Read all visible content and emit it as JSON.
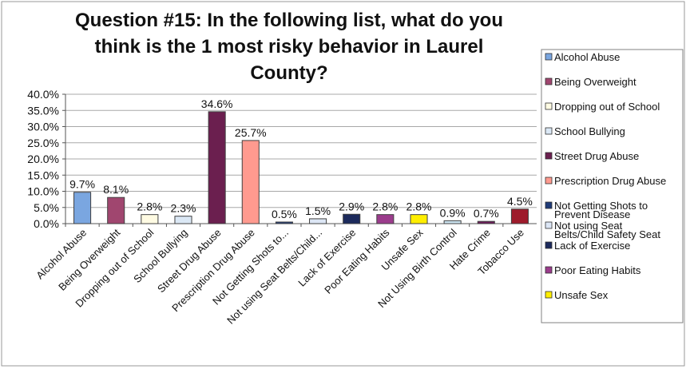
{
  "chart_data": {
    "type": "bar",
    "title_lines": [
      "Question #15:  In the following list, what do you",
      "think is the 1 most risky behavior in Laurel",
      "County?"
    ],
    "categories": [
      "Alcohol Abuse",
      "Being Overweight",
      "Dropping out of School",
      "School Bullying",
      "Street Drug Abuse",
      "Prescription Drug Abuse",
      "Not Getting Shots to...",
      "Not using Seat Belts/Child...",
      "Lack of Exercise",
      "Poor Eating Habits",
      "Unsafe Sex",
      "Not Using Birth Control",
      "Hate Crime",
      "Tobacco Use"
    ],
    "values": [
      9.7,
      8.1,
      2.8,
      2.3,
      34.6,
      25.7,
      0.5,
      1.5,
      2.9,
      2.8,
      2.8,
      0.9,
      0.7,
      4.5
    ],
    "data_labels": [
      "9.7%",
      "8.1%",
      "2.8%",
      "2.3%",
      "34.6%",
      "25.7%",
      "0.5%",
      "1.5%",
      "2.9%",
      "2.8%",
      "2.8%",
      "0.9%",
      "0.7%",
      "4.5%"
    ],
    "colors": [
      "#7aa6e0",
      "#a0466f",
      "#fffbe3",
      "#dbe8f5",
      "#6b1f4f",
      "#ff9a8f",
      "#1f3b78",
      "#dce6f5",
      "#1c2a5c",
      "#9b3c8c",
      "#ffee00",
      "#cce4f0",
      "#6e1d5b",
      "#9e1b2b"
    ],
    "ylim": [
      0,
      40
    ],
    "y_ticks": [
      "0.0%",
      "5.0%",
      "10.0%",
      "15.0%",
      "20.0%",
      "25.0%",
      "30.0%",
      "35.0%",
      "40.0%"
    ],
    "y_tick_values": [
      0,
      5,
      10,
      15,
      20,
      25,
      30,
      35,
      40
    ],
    "grid": true,
    "legend_position": "right",
    "legend": [
      {
        "lines": [
          "Alcohol Abuse"
        ],
        "color": "#7aa6e0"
      },
      {
        "lines": [
          "Being Overweight"
        ],
        "color": "#a0466f"
      },
      {
        "lines": [
          "Dropping out of School"
        ],
        "color": "#fffbe3"
      },
      {
        "lines": [
          "School Bullying"
        ],
        "color": "#dbe8f5"
      },
      {
        "lines": [
          "Street Drug Abuse"
        ],
        "color": "#6b1f4f"
      },
      {
        "lines": [
          "Prescription Drug Abuse"
        ],
        "color": "#ff9a8f"
      },
      {
        "lines": [
          "Not Getting Shots to",
          "Prevent Disease"
        ],
        "color": "#1f3b78"
      },
      {
        "lines": [
          "Not using Seat",
          "Belts/Child Safety Seat"
        ],
        "color": "#dce6f5"
      },
      {
        "lines": [
          "Lack of Exercise"
        ],
        "color": "#1c2a5c"
      },
      {
        "lines": [
          "Poor Eating Habits"
        ],
        "color": "#9b3c8c"
      },
      {
        "lines": [
          "Unsafe Sex"
        ],
        "color": "#ffee00"
      }
    ]
  }
}
